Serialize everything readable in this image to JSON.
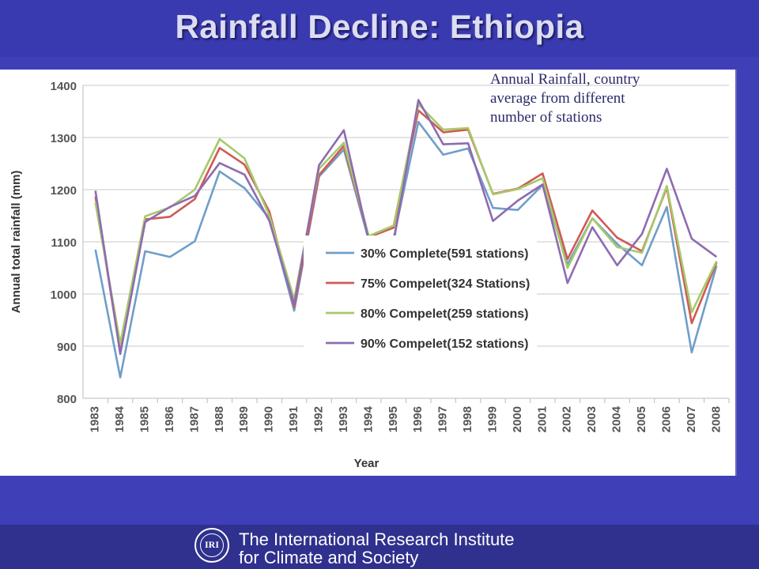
{
  "slide": {
    "title": "Rainfall Decline: Ethiopia",
    "annotation": "Annual Rainfall, country\naverage from different\nnumber of stations"
  },
  "footer": {
    "logo_text": "IRI",
    "org_line1": "The International Research Institute",
    "org_line2": "for Climate and Society"
  },
  "colors": {
    "background": "#3f3fb8",
    "series": [
      "#6f9ec8",
      "#cf5a55",
      "#a6c96a",
      "#8e6bb0"
    ]
  },
  "chart_data": {
    "type": "line",
    "xlabel": "Year",
    "ylabel": "Annual total rainfall (mm)",
    "ylim": [
      800,
      1400
    ],
    "yticks": [
      800,
      900,
      1000,
      1100,
      1200,
      1300,
      1400
    ],
    "grid": true,
    "legend_position": "bottom-center",
    "x": [
      "1983",
      "1984",
      "1985",
      "1986",
      "1987",
      "1988",
      "1989",
      "1990",
      "1991",
      "1992",
      "1993",
      "1994",
      "1995",
      "1996",
      "1997",
      "1998",
      "1999",
      "2000",
      "2001",
      "2002",
      "2003",
      "2004",
      "2005",
      "2006",
      "2007",
      "2008"
    ],
    "series": [
      {
        "name": "30% Complete(591 stations)",
        "values": [
          1085,
          840,
          1082,
          1071,
          1101,
          1235,
          1203,
          1145,
          968,
          1225,
          1277,
          1103,
          1106,
          1330,
          1267,
          1279,
          1165,
          1161,
          1209,
          1057,
          1145,
          1096,
          1055,
          1167,
          888,
          1054
        ]
      },
      {
        "name": "75% Compelet(324 Stations)",
        "values": [
          1187,
          888,
          1143,
          1148,
          1182,
          1280,
          1248,
          1158,
          975,
          1228,
          1284,
          1109,
          1127,
          1352,
          1310,
          1315,
          1192,
          1202,
          1231,
          1067,
          1160,
          1108,
          1082,
          1204,
          944,
          1060
        ]
      },
      {
        "name": "80% Compelet(259 stations)",
        "values": [
          1175,
          905,
          1149,
          1166,
          1200,
          1297,
          1260,
          1150,
          990,
          1240,
          1290,
          1111,
          1131,
          1364,
          1315,
          1318,
          1191,
          1201,
          1222,
          1050,
          1145,
          1090,
          1079,
          1207,
          965,
          1063
        ]
      },
      {
        "name": "90% Compelet(152 stations)",
        "values": [
          1198,
          885,
          1138,
          1167,
          1188,
          1251,
          1229,
          1140,
          980,
          1247,
          1314,
          1103,
          1099,
          1372,
          1287,
          1289,
          1140,
          1179,
          1210,
          1021,
          1128,
          1055,
          1115,
          1240,
          1106,
          1071
        ]
      }
    ]
  }
}
